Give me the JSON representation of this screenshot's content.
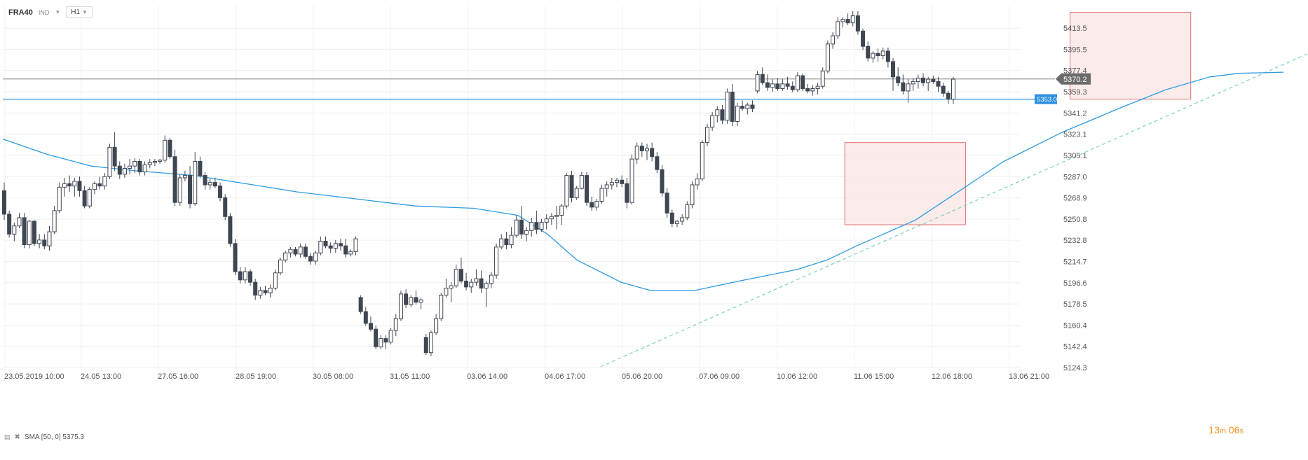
{
  "header": {
    "symbol": "FRA40",
    "asset_class": "IND",
    "timeframe": "H1"
  },
  "indicator": {
    "label": "SMA [50, 0] 5375.3"
  },
  "timer": {
    "minutes": "13",
    "m_unit": "m",
    "seconds": "06",
    "s_unit": "s"
  },
  "colors": {
    "up": "#ffffff",
    "down": "#3e4652",
    "sma": "#2d9be0",
    "blue_line": "#2b8fe0",
    "gray_line": "#9c9c9c",
    "trend": "#7cd0c0",
    "box_fill": "#fbe4e4",
    "box_stroke": "#e07474"
  },
  "chart_data": {
    "type": "candlestick",
    "symbol": "FRA40",
    "timeframe": "H1",
    "y_ticks": [
      5124.3,
      5142.4,
      5160.4,
      5178.5,
      5196.6,
      5214.7,
      5232.8,
      5250.8,
      5268.9,
      5287.0,
      5305.1,
      5323.1,
      5341.2,
      5359.3,
      5377.4,
      5395.5,
      5413.5
    ],
    "ylim": [
      5120,
      5424
    ],
    "x_ticks": [
      "23.05.2019 10:00",
      "24.05 13:00",
      "27.05 16:00",
      "28.05 19:00",
      "30.05 08:00",
      "31.05 11:00",
      "03.06 14:00",
      "04.06 17:00",
      "05.06 20:00",
      "07.06 09:00",
      "10.06 12:00",
      "11.06 15:00",
      "12.06 18:00",
      "13.06 21:00"
    ],
    "current_price": "5370.2",
    "current_price_value": 5370.2,
    "horizontal_level": "5353.0",
    "horizontal_level_value": 5353.0,
    "candles": [
      [
        5275,
        5282,
        5250,
        5255
      ],
      [
        5255,
        5258,
        5235,
        5238
      ],
      [
        5238,
        5248,
        5232,
        5245
      ],
      [
        5245,
        5256,
        5243,
        5252
      ],
      [
        5252,
        5256,
        5226,
        5229
      ],
      [
        5229,
        5250,
        5226,
        5249
      ],
      [
        5249,
        5250,
        5228,
        5230
      ],
      [
        5230,
        5238,
        5226,
        5233
      ],
      [
        5233,
        5238,
        5225,
        5228
      ],
      [
        5228,
        5245,
        5224,
        5240
      ],
      [
        5240,
        5262,
        5238,
        5258
      ],
      [
        5258,
        5282,
        5256,
        5278
      ],
      [
        5278,
        5286,
        5270,
        5281
      ],
      [
        5281,
        5288,
        5274,
        5279
      ],
      [
        5279,
        5286,
        5270,
        5283
      ],
      [
        5283,
        5287,
        5270,
        5275
      ],
      [
        5275,
        5279,
        5260,
        5262
      ],
      [
        5262,
        5278,
        5260,
        5276
      ],
      [
        5276,
        5283,
        5272,
        5281
      ],
      [
        5281,
        5287,
        5276,
        5279
      ],
      [
        5279,
        5290,
        5276,
        5287
      ],
      [
        5287,
        5315,
        5285,
        5312
      ],
      [
        5312,
        5325,
        5292,
        5296
      ],
      [
        5296,
        5300,
        5285,
        5289
      ],
      [
        5289,
        5298,
        5286,
        5294
      ],
      [
        5294,
        5302,
        5289,
        5296
      ],
      [
        5296,
        5303,
        5290,
        5300
      ],
      [
        5300,
        5302,
        5288,
        5291
      ],
      [
        5291,
        5300,
        5288,
        5297
      ],
      [
        5297,
        5302,
        5294,
        5299
      ],
      [
        5299,
        5302,
        5296,
        5300
      ],
      [
        5300,
        5302,
        5298,
        5301
      ],
      [
        5301,
        5322,
        5299,
        5318
      ],
      [
        5318,
        5320,
        5302,
        5304
      ],
      [
        5304,
        5310,
        5262,
        5265
      ],
      [
        5265,
        5289,
        5262,
        5286
      ],
      [
        5286,
        5292,
        5283,
        5288
      ],
      [
        5288,
        5296,
        5260,
        5264
      ],
      [
        5264,
        5308,
        5262,
        5300
      ],
      [
        5300,
        5304,
        5286,
        5288
      ],
      [
        5288,
        5291,
        5276,
        5280
      ],
      [
        5280,
        5285,
        5276,
        5282
      ],
      [
        5282,
        5286,
        5277,
        5279
      ],
      [
        5279,
        5282,
        5266,
        5269
      ],
      [
        5269,
        5272,
        5250,
        5253
      ],
      [
        5253,
        5256,
        5227,
        5230
      ],
      [
        5230,
        5234,
        5203,
        5206
      ],
      [
        5206,
        5210,
        5196,
        5199
      ],
      [
        5199,
        5210,
        5196,
        5206
      ],
      [
        5206,
        5208,
        5194,
        5197
      ],
      [
        5197,
        5200,
        5182,
        5186
      ],
      [
        5186,
        5193,
        5183,
        5190
      ],
      [
        5190,
        5194,
        5186,
        5188
      ],
      [
        5188,
        5195,
        5184,
        5192
      ],
      [
        5192,
        5208,
        5190,
        5205
      ],
      [
        5205,
        5218,
        5203,
        5216
      ],
      [
        5216,
        5224,
        5214,
        5222
      ],
      [
        5222,
        5227,
        5218,
        5225
      ],
      [
        5225,
        5227,
        5219,
        5221
      ],
      [
        5221,
        5230,
        5218,
        5227
      ],
      [
        5227,
        5230,
        5217,
        5219
      ],
      [
        5219,
        5222,
        5212,
        5215
      ],
      [
        5215,
        5224,
        5212,
        5222
      ],
      [
        5222,
        5236,
        5220,
        5232
      ],
      [
        5232,
        5236,
        5226,
        5228
      ],
      [
        5228,
        5231,
        5222,
        5226
      ],
      [
        5226,
        5233,
        5222,
        5230
      ],
      [
        5230,
        5234,
        5224,
        5228
      ],
      [
        5228,
        5234,
        5218,
        5221
      ],
      [
        5221,
        5225,
        5219,
        5223
      ],
      [
        5223,
        5236,
        5220,
        5234
      ],
      [
        5184,
        5186,
        5170,
        5172
      ],
      [
        5172,
        5176,
        5160,
        5162
      ],
      [
        5162,
        5168,
        5155,
        5157
      ],
      [
        5157,
        5160,
        5140,
        5142
      ],
      [
        5142,
        5152,
        5140,
        5149
      ],
      [
        5149,
        5152,
        5140,
        5146
      ],
      [
        5146,
        5158,
        5144,
        5156
      ],
      [
        5156,
        5170,
        5151,
        5166
      ],
      [
        5166,
        5190,
        5164,
        5187
      ],
      [
        5187,
        5191,
        5175,
        5178
      ],
      [
        5178,
        5186,
        5176,
        5184
      ],
      [
        5184,
        5190,
        5178,
        5180
      ],
      [
        5180,
        5184,
        5174,
        5182
      ],
      [
        5150,
        5153,
        5135,
        5137
      ],
      [
        5137,
        5156,
        5134,
        5154
      ],
      [
        5154,
        5170,
        5152,
        5166
      ],
      [
        5166,
        5188,
        5164,
        5186
      ],
      [
        5186,
        5200,
        5184,
        5192
      ],
      [
        5192,
        5197,
        5180,
        5194
      ],
      [
        5194,
        5212,
        5192,
        5208
      ],
      [
        5208,
        5218,
        5196,
        5198
      ],
      [
        5198,
        5205,
        5190,
        5193
      ],
      [
        5193,
        5200,
        5188,
        5197
      ],
      [
        5197,
        5208,
        5194,
        5200
      ],
      [
        5200,
        5207,
        5188,
        5192
      ],
      [
        5192,
        5198,
        5176,
        5196
      ],
      [
        5196,
        5206,
        5192,
        5203
      ],
      [
        5203,
        5230,
        5200,
        5227
      ],
      [
        5227,
        5238,
        5225,
        5234
      ],
      [
        5234,
        5240,
        5225,
        5229
      ],
      [
        5229,
        5244,
        5226,
        5237
      ],
      [
        5237,
        5254,
        5235,
        5250
      ],
      [
        5250,
        5262,
        5234,
        5238
      ],
      [
        5238,
        5244,
        5232,
        5241
      ],
      [
        5241,
        5252,
        5236,
        5248
      ],
      [
        5248,
        5258,
        5238,
        5242
      ],
      [
        5242,
        5251,
        5240,
        5248
      ],
      [
        5248,
        5255,
        5242,
        5251
      ],
      [
        5251,
        5256,
        5246,
        5253
      ],
      [
        5253,
        5262,
        5242,
        5254
      ],
      [
        5254,
        5264,
        5246,
        5262
      ],
      [
        5262,
        5290,
        5260,
        5288
      ],
      [
        5288,
        5292,
        5265,
        5269
      ],
      [
        5269,
        5279,
        5267,
        5277
      ],
      [
        5277,
        5291,
        5276,
        5288
      ],
      [
        5288,
        5291,
        5262,
        5265
      ],
      [
        5265,
        5270,
        5258,
        5261
      ],
      [
        5261,
        5268,
        5258,
        5266
      ],
      [
        5266,
        5280,
        5264,
        5277
      ],
      [
        5277,
        5283,
        5270,
        5280
      ],
      [
        5280,
        5286,
        5276,
        5282
      ],
      [
        5282,
        5286,
        5278,
        5284
      ],
      [
        5284,
        5288,
        5278,
        5281
      ],
      [
        5281,
        5286,
        5260,
        5265
      ],
      [
        5265,
        5306,
        5263,
        5302
      ],
      [
        5302,
        5316,
        5298,
        5313
      ],
      [
        5313,
        5316,
        5304,
        5309
      ],
      [
        5309,
        5315,
        5301,
        5311
      ],
      [
        5311,
        5316,
        5300,
        5304
      ],
      [
        5304,
        5308,
        5290,
        5293
      ],
      [
        5293,
        5297,
        5270,
        5273
      ],
      [
        5273,
        5277,
        5252,
        5256
      ],
      [
        5256,
        5259,
        5244,
        5247
      ],
      [
        5247,
        5250,
        5244,
        5249
      ],
      [
        5249,
        5255,
        5246,
        5252
      ],
      [
        5252,
        5266,
        5250,
        5263
      ],
      [
        5263,
        5283,
        5260,
        5280
      ],
      [
        5280,
        5290,
        5276,
        5285
      ],
      [
        5285,
        5318,
        5283,
        5316
      ],
      [
        5316,
        5332,
        5313,
        5329
      ],
      [
        5329,
        5342,
        5326,
        5339
      ],
      [
        5339,
        5347,
        5333,
        5344
      ],
      [
        5344,
        5348,
        5332,
        5335
      ],
      [
        5335,
        5362,
        5332,
        5359
      ],
      [
        5359,
        5366,
        5330,
        5334
      ],
      [
        5334,
        5350,
        5330,
        5347
      ],
      [
        5347,
        5352,
        5343,
        5345
      ],
      [
        5345,
        5350,
        5340,
        5348
      ],
      [
        5348,
        5352,
        5342,
        5345
      ],
      [
        5360,
        5377,
        5358,
        5374
      ],
      [
        5374,
        5380,
        5365,
        5367
      ],
      [
        5367,
        5374,
        5360,
        5363
      ],
      [
        5363,
        5370,
        5359,
        5366
      ],
      [
        5366,
        5371,
        5360,
        5362
      ],
      [
        5362,
        5370,
        5360,
        5366
      ],
      [
        5366,
        5372,
        5361,
        5364
      ],
      [
        5364,
        5368,
        5359,
        5361
      ],
      [
        5361,
        5376,
        5359,
        5373
      ],
      [
        5373,
        5375,
        5360,
        5362
      ],
      [
        5362,
        5366,
        5358,
        5360
      ],
      [
        5360,
        5365,
        5356,
        5362
      ],
      [
        5362,
        5367,
        5357,
        5364
      ],
      [
        5364,
        5380,
        5362,
        5377
      ],
      [
        5377,
        5403,
        5375,
        5400
      ],
      [
        5400,
        5410,
        5396,
        5407
      ],
      [
        5407,
        5423,
        5404,
        5419
      ],
      [
        5419,
        5423,
        5414,
        5421
      ],
      [
        5421,
        5426,
        5416,
        5418
      ],
      [
        5418,
        5428,
        5415,
        5424
      ],
      [
        5424,
        5428,
        5408,
        5411
      ],
      [
        5411,
        5413,
        5395,
        5398
      ],
      [
        5398,
        5402,
        5385,
        5388
      ],
      [
        5388,
        5394,
        5384,
        5392
      ],
      [
        5392,
        5396,
        5385,
        5390
      ],
      [
        5390,
        5397,
        5387,
        5394
      ],
      [
        5394,
        5397,
        5380,
        5385
      ],
      [
        5385,
        5388,
        5360,
        5372
      ],
      [
        5372,
        5380,
        5364,
        5367
      ],
      [
        5367,
        5374,
        5357,
        5360
      ],
      [
        5360,
        5370,
        5350,
        5366
      ],
      [
        5366,
        5371,
        5360,
        5368
      ],
      [
        5368,
        5374,
        5362,
        5371
      ],
      [
        5371,
        5375,
        5364,
        5367
      ],
      [
        5367,
        5372,
        5360,
        5370
      ],
      [
        5370,
        5373,
        5366,
        5368
      ],
      [
        5368,
        5372,
        5359,
        5364
      ],
      [
        5364,
        5367,
        5355,
        5358
      ],
      [
        5358,
        5360,
        5349,
        5353
      ],
      [
        5353,
        5372,
        5349,
        5370
      ]
    ],
    "sma": {
      "name": "SMA [50, 0]",
      "last_value": 5375.3,
      "points": [
        [
          0,
          5319
        ],
        [
          0.03,
          5306
        ],
        [
          0.06,
          5296
        ],
        [
          0.09,
          5292
        ],
        [
          0.13,
          5288
        ],
        [
          0.17,
          5280
        ],
        [
          0.2,
          5274
        ],
        [
          0.24,
          5268
        ],
        [
          0.28,
          5262
        ],
        [
          0.32,
          5260
        ],
        [
          0.35,
          5254
        ],
        [
          0.37,
          5238
        ],
        [
          0.39,
          5216
        ],
        [
          0.42,
          5197
        ],
        [
          0.44,
          5190
        ],
        [
          0.47,
          5190
        ],
        [
          0.5,
          5198
        ],
        [
          0.54,
          5208
        ],
        [
          0.56,
          5216
        ],
        [
          0.58,
          5228
        ],
        [
          0.62,
          5250
        ],
        [
          0.65,
          5275
        ],
        [
          0.68,
          5300
        ],
        [
          0.72,
          5325
        ],
        [
          0.76,
          5346
        ],
        [
          0.79,
          5361
        ],
        [
          0.82,
          5372
        ],
        [
          0.84,
          5375
        ],
        [
          0.87,
          5376
        ]
      ]
    },
    "trendline": {
      "from": [
        0.406,
        5125
      ],
      "to": [
        0.887,
        5392
      ]
    },
    "zones": [
      {
        "from": [
          0.572,
          5246
        ],
        "to": [
          0.654,
          5316
        ]
      },
      {
        "from": [
          0.725,
          5353
        ],
        "to": [
          0.807,
          5427
        ]
      }
    ]
  }
}
